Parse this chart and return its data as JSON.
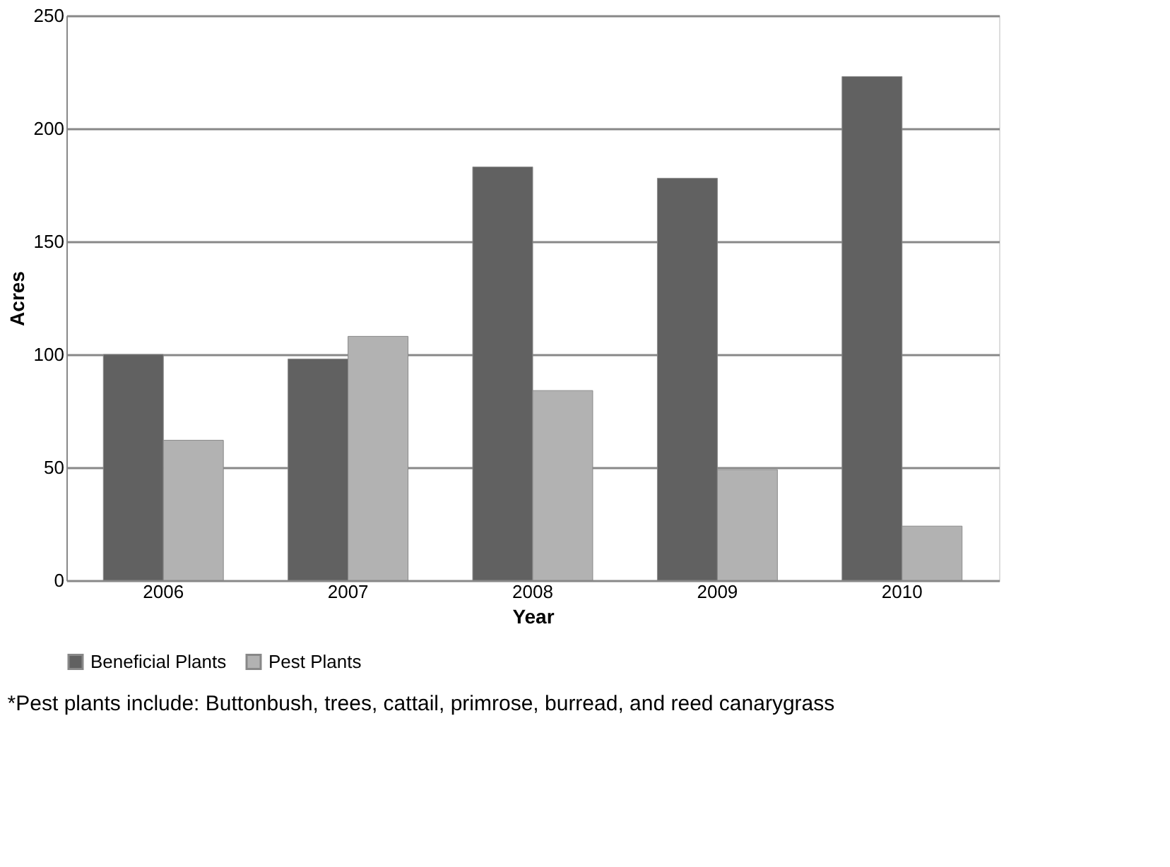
{
  "chart_data": {
    "type": "bar",
    "categories": [
      "2006",
      "2007",
      "2008",
      "2009",
      "2010"
    ],
    "series": [
      {
        "name": "Beneficial Plants",
        "color": "#616161",
        "values": [
          100,
          98,
          183,
          178,
          223
        ]
      },
      {
        "name": "Pest Plants",
        "color": "#b2b2b2",
        "values": [
          62,
          108,
          84,
          49,
          24
        ]
      }
    ],
    "xlabel": "Year",
    "ylabel": "Acres",
    "ylim": [
      0,
      250
    ],
    "yticks": [
      0,
      50,
      100,
      150,
      200,
      250
    ],
    "grid": "y",
    "legend": "bottom",
    "annotations": [
      "*Pest plants include:  Buttonbush, trees, cattail, primrose, burread, and reed canarygrass"
    ]
  }
}
